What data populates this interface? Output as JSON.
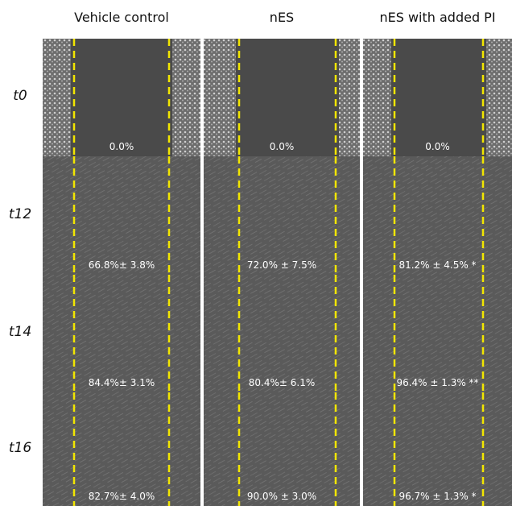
{
  "columns": [
    "Vehicle control",
    "nES",
    "nES with added PI"
  ],
  "rows": [
    {
      "label": "t0",
      "cells": [
        "0.0%",
        "0.0%",
        "0.0%"
      ]
    },
    {
      "label": "t12",
      "cells": [
        "66.8%± 3.8%",
        "72.0% ± 7.5%",
        "81.2% ± 4.5% *"
      ]
    },
    {
      "label": "t14",
      "cells": [
        "84.4%± 3.1%",
        "80.4%± 6.1%",
        "96.4% ± 1.3% **"
      ]
    },
    {
      "label": "t16",
      "cells": [
        "82.7%± 4.0%",
        "90.0% ± 3.0%",
        "96.7% ± 1.3% *"
      ]
    }
  ]
}
